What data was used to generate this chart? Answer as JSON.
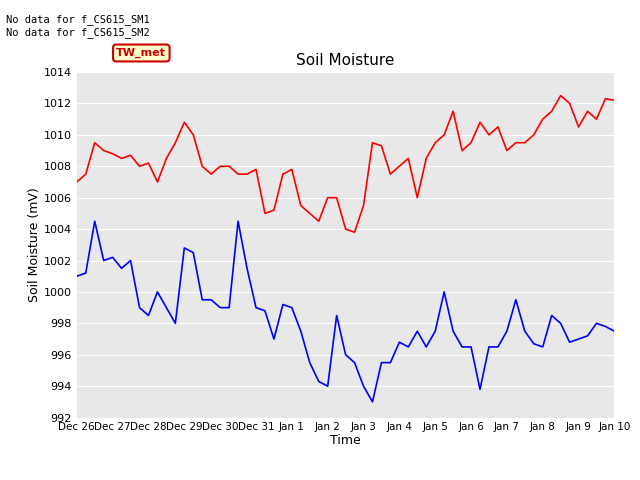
{
  "title": "Soil Moisture",
  "xlabel": "Time",
  "ylabel": "Soil Moisture (mV)",
  "ylim": [
    992,
    1014
  ],
  "background_color": "#ffffff",
  "plot_bg_color": "#e8e8e8",
  "grid_color": "#ffffff",
  "annotation_text": "No data for f_CS615_SM1\nNo data for f_CS615_SM2",
  "line1_color": "#ff0000",
  "line2_color": "#0000ff",
  "box_label": "TW_met",
  "box_facecolor": "#ffffcc",
  "box_edgecolor": "#cc0000",
  "tick_labels": [
    "Dec 26",
    "Dec 27",
    "Dec 28",
    "Dec 29",
    "Dec 30",
    "Dec 31",
    "Jan 1",
    "Jan 2",
    "Jan 3",
    "Jan 4",
    "Jan 5",
    "Jan 6",
    "Jan 7",
    "Jan 8",
    "Jan 9",
    "Jan 10"
  ],
  "yticks": [
    992,
    994,
    996,
    998,
    1000,
    1002,
    1004,
    1006,
    1008,
    1010,
    1012,
    1014
  ],
  "sm1": [
    1007,
    1007.5,
    1009.5,
    1009.0,
    1008.8,
    1008.5,
    1008.7,
    1008.0,
    1008.2,
    1007.0,
    1008.5,
    1009.5,
    1010.8,
    1010.0,
    1008.0,
    1007.5,
    1008.0,
    1008.0,
    1007.5,
    1007.5,
    1007.8,
    1005.0,
    1005.2,
    1007.5,
    1007.8,
    1005.5,
    1005.0,
    1004.5,
    1006.0,
    1006.0,
    1004.0,
    1003.8,
    1005.5,
    1009.5,
    1009.3,
    1007.5,
    1008.0,
    1008.5,
    1006.0,
    1008.5,
    1009.5,
    1010.0,
    1011.5,
    1009.0,
    1009.5,
    1010.8,
    1010.0,
    1010.5,
    1009.0,
    1009.5,
    1009.5,
    1010.0,
    1011.0,
    1011.5,
    1012.5,
    1012.0,
    1010.5,
    1011.5,
    1011.0,
    1012.3,
    1012.2
  ],
  "sm2": [
    1001.0,
    1001.2,
    1004.5,
    1002.0,
    1002.2,
    1001.5,
    1002.0,
    999.0,
    998.5,
    1000.0,
    999.0,
    998.0,
    1002.8,
    1002.5,
    999.5,
    999.5,
    999.0,
    999.0,
    1004.5,
    1001.5,
    999.0,
    998.8,
    997.0,
    999.2,
    999.0,
    997.5,
    995.5,
    994.3,
    994.0,
    998.5,
    996.0,
    995.5,
    994.0,
    993.0,
    995.5,
    995.5,
    996.8,
    996.5,
    997.5,
    996.5,
    997.5,
    1000.0,
    997.5,
    996.5,
    996.5,
    993.8,
    996.5,
    996.5,
    997.5,
    999.5,
    997.5,
    996.7,
    996.5,
    998.5,
    998.0,
    996.8,
    997.0,
    997.2,
    998.0,
    997.8,
    997.5
  ]
}
